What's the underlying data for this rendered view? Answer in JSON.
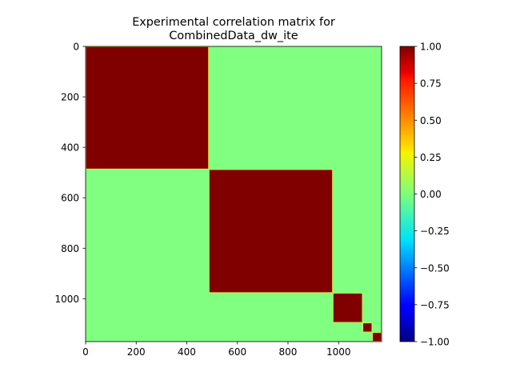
{
  "chart_data": {
    "type": "heatmap",
    "title_lines": [
      "Experimental correlation matrix for",
      "CombinedData_dw_ite"
    ],
    "xlabel": "",
    "ylabel": "",
    "matrix_size": 1170,
    "xlim": [
      0,
      1170
    ],
    "ylim": [
      1170,
      0
    ],
    "x_ticks": [
      0,
      200,
      400,
      600,
      800,
      1000
    ],
    "y_ticks": [
      0,
      200,
      400,
      600,
      800,
      1000
    ],
    "x_tick_labels": [
      "0",
      "200",
      "400",
      "600",
      "800",
      "1000"
    ],
    "y_tick_labels": [
      "0",
      "200",
      "400",
      "600",
      "800",
      "1000"
    ],
    "background_value": 0.0,
    "blocks": [
      {
        "start": 0,
        "end": 487,
        "value": 1.0
      },
      {
        "start": 487,
        "end": 977,
        "value": 1.0
      },
      {
        "start": 977,
        "end": 1095,
        "value": 1.0
      },
      {
        "start": 1095,
        "end": 1133,
        "value": 1.0
      },
      {
        "start": 1133,
        "end": 1170,
        "value": 1.0
      }
    ],
    "colorbar": {
      "colormap": "jet",
      "vmin": -1.0,
      "vmax": 1.0,
      "ticks": [
        -1.0,
        -0.75,
        -0.5,
        -0.25,
        0.0,
        0.25,
        0.5,
        0.75,
        1.0
      ],
      "tick_labels": [
        "−1.00",
        "−0.75",
        "−0.50",
        "−0.25",
        "0.00",
        "0.25",
        "0.50",
        "0.75",
        "1.00"
      ]
    }
  }
}
